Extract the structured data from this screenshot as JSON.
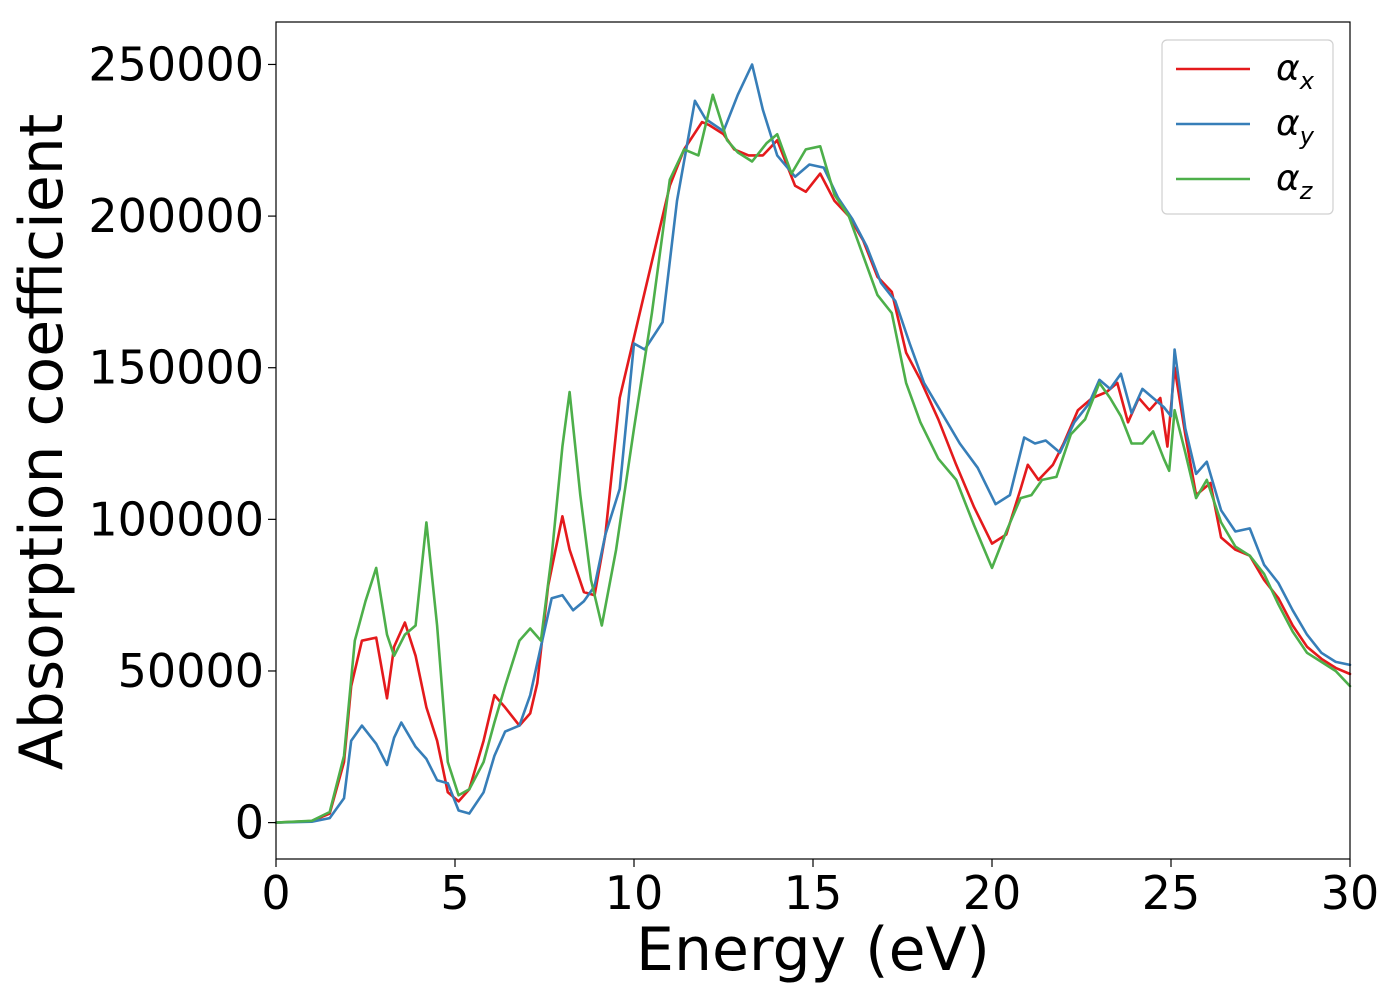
{
  "chart_data": {
    "type": "line",
    "xlabel": "Energy (eV)",
    "ylabel": "Absorption coefficient",
    "xlim": [
      0,
      30
    ],
    "ylim": [
      -12000,
      264000
    ],
    "xticks": [
      0,
      5,
      10,
      15,
      20,
      25,
      30
    ],
    "yticks": [
      0,
      50000,
      100000,
      150000,
      200000,
      250000
    ],
    "grid": false,
    "legend_position": "top-right",
    "series": [
      {
        "name": "αx",
        "symbol": "α",
        "subscript": "x",
        "color": "#e41a1c",
        "x": [
          0,
          1.0,
          1.5,
          1.9,
          2.1,
          2.4,
          2.8,
          3.1,
          3.3,
          3.6,
          3.9,
          4.2,
          4.5,
          4.8,
          5.1,
          5.4,
          5.8,
          6.1,
          6.4,
          6.8,
          7.1,
          7.3,
          7.6,
          8.0,
          8.2,
          8.6,
          8.9,
          9.2,
          9.6,
          10.0,
          10.5,
          11.0,
          11.4,
          11.9,
          12.1,
          12.5,
          12.8,
          13.2,
          13.6,
          14.0,
          14.5,
          14.8,
          15.2,
          15.6,
          16.0,
          16.4,
          16.8,
          17.2,
          17.6,
          18.0,
          18.5,
          19.0,
          19.5,
          20.0,
          20.4,
          20.8,
          21.0,
          21.3,
          21.7,
          22.0,
          22.4,
          22.8,
          23.2,
          23.5,
          23.8,
          24.1,
          24.4,
          24.7,
          24.9,
          25.1,
          25.4,
          25.7,
          26.1,
          26.4,
          26.8,
          27.2,
          27.6,
          28.0,
          28.4,
          28.8,
          29.2,
          29.6,
          30.0
        ],
        "values": [
          0,
          500,
          3000,
          20000,
          45000,
          60000,
          61000,
          41000,
          58000,
          66000,
          55000,
          38000,
          27000,
          10000,
          7000,
          11000,
          27000,
          42000,
          38000,
          32000,
          36000,
          46000,
          78000,
          101000,
          90000,
          76000,
          75000,
          95000,
          140000,
          160000,
          185000,
          210000,
          222000,
          231000,
          230000,
          227000,
          222000,
          220000,
          220000,
          225000,
          210000,
          208000,
          214000,
          205000,
          200000,
          192000,
          180000,
          175000,
          155000,
          146000,
          133000,
          118000,
          104000,
          92000,
          95000,
          110000,
          118000,
          113000,
          118000,
          125000,
          136000,
          140000,
          142000,
          145000,
          132000,
          140000,
          136000,
          140000,
          124000,
          150000,
          128000,
          108000,
          112000,
          94000,
          90000,
          88000,
          80000,
          74000,
          65000,
          58000,
          54000,
          51000,
          49000
        ]
      },
      {
        "name": "αy",
        "symbol": "α",
        "subscript": "y",
        "color": "#377eb8",
        "x": [
          0,
          1.0,
          1.5,
          1.9,
          2.1,
          2.4,
          2.8,
          3.1,
          3.3,
          3.5,
          3.9,
          4.2,
          4.5,
          4.8,
          5.1,
          5.4,
          5.8,
          6.1,
          6.4,
          6.8,
          7.1,
          7.4,
          7.7,
          8.0,
          8.3,
          8.6,
          8.9,
          9.2,
          9.6,
          10.0,
          10.3,
          10.8,
          11.2,
          11.7,
          12.0,
          12.5,
          12.9,
          13.3,
          13.6,
          14.0,
          14.5,
          14.9,
          15.3,
          15.7,
          16.1,
          16.5,
          16.9,
          17.3,
          17.7,
          18.1,
          18.6,
          19.1,
          19.6,
          20.1,
          20.5,
          20.9,
          21.2,
          21.5,
          21.9,
          22.3,
          22.7,
          23.0,
          23.3,
          23.6,
          23.9,
          24.2,
          24.5,
          24.8,
          25.0,
          25.1,
          25.4,
          25.7,
          26.0,
          26.4,
          26.8,
          27.2,
          27.6,
          28.0,
          28.4,
          28.8,
          29.2,
          29.6,
          30.0
        ],
        "values": [
          0,
          300,
          1500,
          8000,
          27000,
          32000,
          26000,
          19000,
          28000,
          33000,
          25000,
          21000,
          14000,
          13000,
          4000,
          3000,
          10000,
          22000,
          30000,
          32000,
          42000,
          58000,
          74000,
          75000,
          70000,
          73000,
          78000,
          95000,
          110000,
          158000,
          156000,
          165000,
          205000,
          238000,
          232000,
          228000,
          240000,
          250000,
          235000,
          220000,
          213000,
          217000,
          216000,
          206000,
          199000,
          190000,
          178000,
          172000,
          158000,
          145000,
          135000,
          125000,
          117000,
          105000,
          108000,
          127000,
          125000,
          126000,
          122000,
          132000,
          138000,
          146000,
          143000,
          148000,
          135000,
          143000,
          140000,
          137000,
          134000,
          156000,
          130000,
          115000,
          119000,
          103000,
          96000,
          97000,
          85000,
          79000,
          70000,
          62000,
          56000,
          53000,
          52000
        ]
      },
      {
        "name": "αz",
        "symbol": "α",
        "subscript": "z",
        "color": "#4daf4a",
        "x": [
          0,
          1.0,
          1.5,
          1.9,
          2.2,
          2.5,
          2.8,
          3.1,
          3.3,
          3.6,
          3.9,
          4.2,
          4.5,
          4.8,
          5.1,
          5.4,
          5.8,
          6.1,
          6.4,
          6.8,
          7.1,
          7.4,
          7.7,
          8.0,
          8.2,
          8.5,
          8.8,
          9.1,
          9.5,
          10.0,
          10.5,
          11.0,
          11.4,
          11.8,
          12.2,
          12.6,
          12.9,
          13.3,
          13.7,
          14.0,
          14.4,
          14.8,
          15.2,
          15.6,
          16.0,
          16.4,
          16.8,
          17.2,
          17.6,
          18.0,
          18.5,
          19.0,
          19.5,
          20.0,
          20.4,
          20.8,
          21.1,
          21.4,
          21.8,
          22.2,
          22.6,
          23.0,
          23.3,
          23.6,
          23.9,
          24.2,
          24.5,
          24.8,
          24.95,
          25.1,
          25.4,
          25.7,
          26.0,
          26.4,
          26.8,
          27.2,
          27.6,
          28.0,
          28.4,
          28.8,
          29.2,
          29.6,
          30.0
        ],
        "values": [
          0,
          600,
          3500,
          22000,
          60000,
          73000,
          84000,
          62000,
          55000,
          62000,
          65000,
          99000,
          65000,
          20000,
          9000,
          11000,
          20000,
          33000,
          45000,
          60000,
          64000,
          60000,
          88000,
          124000,
          142000,
          108000,
          80000,
          65000,
          90000,
          130000,
          168000,
          212000,
          222000,
          220000,
          240000,
          225000,
          221000,
          218000,
          224000,
          227000,
          214000,
          222000,
          223000,
          207000,
          200000,
          187000,
          174000,
          168000,
          145000,
          132000,
          120000,
          113000,
          98000,
          84000,
          96000,
          107000,
          108000,
          113000,
          114000,
          128000,
          133000,
          145000,
          140000,
          134000,
          125000,
          125000,
          129000,
          120000,
          116000,
          136000,
          122000,
          107000,
          113000,
          99000,
          91000,
          88000,
          82000,
          72000,
          63000,
          56000,
          53000,
          50000,
          45000
        ]
      }
    ]
  }
}
